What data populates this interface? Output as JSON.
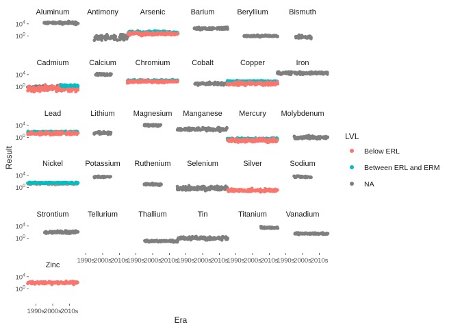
{
  "chart_data": {
    "type": "scatter",
    "subtype": "faceted jitter plot (facet_wrap, 6 columns)",
    "xlabel": "Era",
    "ylabel": "Result",
    "x_categories": [
      "1990s",
      "2000s",
      "2010s"
    ],
    "y_scale": "log10",
    "y_ticks": [
      "10^4",
      "10^0"
    ],
    "y_tick_values": [
      10000,
      1
    ],
    "ylim": [
      0.0001,
      1000000
    ],
    "grid": false,
    "legend": {
      "title": "LVL",
      "position": "right",
      "entries": [
        {
          "label": "Below ERL",
          "color": "#F8766D"
        },
        {
          "label": "Between ERL and ERM",
          "color": "#00BFC4"
        },
        {
          "label": "NA",
          "color": "#7F7F7F"
        }
      ]
    },
    "facets": [
      {
        "name": "Aluminum",
        "series": [
          {
            "level": "NA",
            "eras": [
              "2000s",
              "2010s"
            ],
            "y_center": 20000,
            "y_spread": 0.4
          }
        ]
      },
      {
        "name": "Antimony",
        "series": [
          {
            "level": "NA",
            "eras": [
              "2000s",
              "2010s"
            ],
            "y_center": 0.3,
            "y_spread": 0.9
          }
        ]
      },
      {
        "name": "Arsenic",
        "series": [
          {
            "level": "Between ERL and ERM",
            "eras": [
              "1990s",
              "2000s",
              "2010s"
            ],
            "y_center": 15,
            "y_spread": 0.4
          },
          {
            "level": "Below ERL",
            "eras": [
              "1990s",
              "2000s",
              "2010s"
            ],
            "y_center": 5,
            "y_spread": 0.5
          }
        ]
      },
      {
        "name": "Barium",
        "series": [
          {
            "level": "NA",
            "eras": [
              "2000s",
              "2010s"
            ],
            "y_center": 300,
            "y_spread": 0.4
          }
        ]
      },
      {
        "name": "Beryllium",
        "series": [
          {
            "level": "NA",
            "eras": [
              "2000s",
              "2010s"
            ],
            "y_center": 1,
            "y_spread": 0.3
          }
        ]
      },
      {
        "name": "Bismuth",
        "series": [
          {
            "level": "NA",
            "eras": [
              "2000s"
            ],
            "y_center": 0.5,
            "y_spread": 0.4
          }
        ]
      },
      {
        "name": "Cadmium",
        "series": [
          {
            "level": "NA",
            "eras": [
              "1990s",
              "2000s",
              "2010s"
            ],
            "y_center": 0.5,
            "y_spread": 0.7
          },
          {
            "level": "Below ERL",
            "eras": [
              "1990s",
              "2000s",
              "2010s"
            ],
            "y_center": 0.2,
            "y_spread": 1.0
          },
          {
            "level": "Between ERL and ERM",
            "eras": [
              "2010s"
            ],
            "y_center": 2,
            "y_spread": 0.3
          }
        ]
      },
      {
        "name": "Calcium",
        "series": [
          {
            "level": "NA",
            "eras": [
              "2000s"
            ],
            "y_center": 10000,
            "y_spread": 0.4
          }
        ]
      },
      {
        "name": "Chromium",
        "series": [
          {
            "level": "Between ERL and ERM",
            "eras": [
              "1990s",
              "2000s",
              "2010s"
            ],
            "y_center": 100,
            "y_spread": 0.3
          },
          {
            "level": "Below ERL",
            "eras": [
              "1990s",
              "2000s",
              "2010s"
            ],
            "y_center": 50,
            "y_spread": 0.4
          }
        ]
      },
      {
        "name": "Cobalt",
        "series": [
          {
            "level": "NA",
            "eras": [
              "2000s",
              "2010s"
            ],
            "y_center": 10,
            "y_spread": 0.4
          }
        ]
      },
      {
        "name": "Copper",
        "series": [
          {
            "level": "Between ERL and ERM",
            "eras": [
              "1990s",
              "2000s",
              "2010s"
            ],
            "y_center": 50,
            "y_spread": 0.3
          },
          {
            "level": "Below ERL",
            "eras": [
              "1990s",
              "2000s",
              "2010s"
            ],
            "y_center": 10,
            "y_spread": 0.6
          }
        ]
      },
      {
        "name": "Iron",
        "series": [
          {
            "level": "NA",
            "eras": [
              "1990s",
              "2000s",
              "2010s"
            ],
            "y_center": 30000,
            "y_spread": 0.4
          }
        ]
      },
      {
        "name": "Lead",
        "series": [
          {
            "level": "Between ERL and ERM",
            "eras": [
              "1990s",
              "2000s",
              "2010s"
            ],
            "y_center": 50,
            "y_spread": 0.3
          },
          {
            "level": "Below ERL",
            "eras": [
              "1990s",
              "2000s",
              "2010s"
            ],
            "y_center": 20,
            "y_spread": 0.5
          }
        ]
      },
      {
        "name": "Lithium",
        "series": [
          {
            "level": "NA",
            "eras": [
              "2000s"
            ],
            "y_center": 30,
            "y_spread": 0.4
          }
        ]
      },
      {
        "name": "Magnesium",
        "series": [
          {
            "level": "NA",
            "eras": [
              "2000s"
            ],
            "y_center": 10000,
            "y_spread": 0.3
          }
        ]
      },
      {
        "name": "Manganese",
        "series": [
          {
            "level": "NA",
            "eras": [
              "1990s",
              "2000s",
              "2010s"
            ],
            "y_center": 500,
            "y_spread": 0.5
          }
        ]
      },
      {
        "name": "Mercury",
        "series": [
          {
            "level": "Between ERL and ERM",
            "eras": [
              "1990s",
              "2000s",
              "2010s"
            ],
            "y_center": 0.3,
            "y_spread": 0.3
          },
          {
            "level": "Below ERL",
            "eras": [
              "1990s",
              "2000s",
              "2010s"
            ],
            "y_center": 0.1,
            "y_spread": 0.5
          }
        ]
      },
      {
        "name": "Molybdenum",
        "series": [
          {
            "level": "NA",
            "eras": [
              "2000s",
              "2010s"
            ],
            "y_center": 1,
            "y_spread": 0.5
          }
        ]
      },
      {
        "name": "Nickel",
        "series": [
          {
            "level": "Below ERL",
            "eras": [
              "1990s",
              "2000s",
              "2010s"
            ],
            "y_center": 20,
            "y_spread": 0.3
          },
          {
            "level": "Between ERL and ERM",
            "eras": [
              "1990s",
              "2000s",
              "2010s"
            ],
            "y_center": 30,
            "y_spread": 0.25
          }
        ]
      },
      {
        "name": "Potassium",
        "series": [
          {
            "level": "NA",
            "eras": [
              "2000s"
            ],
            "y_center": 3000,
            "y_spread": 0.3
          }
        ]
      },
      {
        "name": "Ruthenium",
        "series": [
          {
            "level": "NA",
            "eras": [
              "2000s"
            ],
            "y_center": 10,
            "y_spread": 0.3
          }
        ]
      },
      {
        "name": "Selenium",
        "series": [
          {
            "level": "NA",
            "eras": [
              "1990s",
              "2000s",
              "2010s"
            ],
            "y_center": 0.5,
            "y_spread": 0.6
          }
        ]
      },
      {
        "name": "Silver",
        "series": [
          {
            "level": "Below ERL",
            "eras": [
              "1990s",
              "2000s",
              "2010s"
            ],
            "y_center": 0.1,
            "y_spread": 0.5
          }
        ]
      },
      {
        "name": "Sodium",
        "series": [
          {
            "level": "NA",
            "eras": [
              "2000s"
            ],
            "y_center": 3000,
            "y_spread": 0.3
          }
        ]
      },
      {
        "name": "Strontium",
        "series": [
          {
            "level": "NA",
            "eras": [
              "2000s",
              "2010s"
            ],
            "y_center": 100,
            "y_spread": 0.4
          }
        ]
      },
      {
        "name": "Tellurium",
        "series": []
      },
      {
        "name": "Thallium",
        "series": [
          {
            "level": "NA",
            "eras": [
              "2000s",
              "2010s"
            ],
            "y_center": 0.1,
            "y_spread": 0.3
          }
        ]
      },
      {
        "name": "Tin",
        "series": [
          {
            "level": "NA",
            "eras": [
              "1990s",
              "2000s",
              "2010s"
            ],
            "y_center": 1,
            "y_spread": 0.5
          }
        ]
      },
      {
        "name": "Titanium",
        "series": [
          {
            "level": "NA",
            "eras": [
              "2010s"
            ],
            "y_center": 3000,
            "y_spread": 0.3
          }
        ]
      },
      {
        "name": "Vanadium",
        "series": [
          {
            "level": "NA",
            "eras": [
              "2000s",
              "2010s"
            ],
            "y_center": 30,
            "y_spread": 0.3
          }
        ]
      },
      {
        "name": "Zinc",
        "series": [
          {
            "level": "Below ERL",
            "eras": [
              "1990s",
              "2000s",
              "2010s"
            ],
            "y_center": 100,
            "y_spread": 0.4
          }
        ]
      }
    ]
  }
}
